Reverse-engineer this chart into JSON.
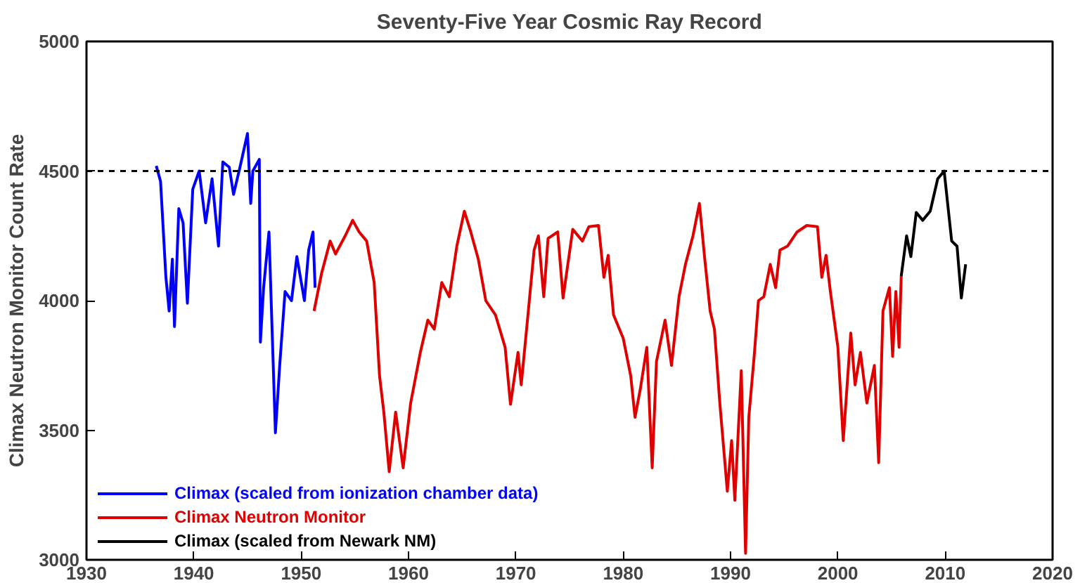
{
  "chart_data": {
    "type": "line",
    "title": "Seventy-Five Year Cosmic Ray Record",
    "ylabel": "Climax Neutron Monitor Count Rate",
    "xlim": [
      1930,
      2020
    ],
    "xticks": [
      1930,
      1940,
      1950,
      1960,
      1970,
      1980,
      1990,
      2000,
      2010,
      2020
    ],
    "ylim": [
      3000,
      5000
    ],
    "yticks": [
      3000,
      3500,
      4000,
      4500,
      5000
    ],
    "grid": false,
    "legend": "bottom left",
    "line_style": "solid",
    "ref_lines": [
      {
        "axis": "y",
        "value": 4500,
        "line_style": "dashed",
        "color": "#000000"
      }
    ],
    "series": [
      {
        "name": "Climax (scaled from ionization chamber data)",
        "color": "#0000ff",
        "x": [
          1936.5,
          1936.9,
          1937.4,
          1937.7,
          1938.0,
          1938.2,
          1938.6,
          1939.0,
          1939.4,
          1939.9,
          1940.5,
          1941.1,
          1941.7,
          1942.3,
          1942.7,
          1943.3,
          1943.7,
          1944.3,
          1945.0,
          1945.3,
          1945.5,
          1946.1,
          1946.2,
          1946.5,
          1947.0,
          1947.6,
          1948.0,
          1948.5,
          1949.1,
          1949.6,
          1950.3,
          1950.7,
          1951.1,
          1951.3
        ],
        "values": [
          4520,
          4460,
          4090,
          3960,
          4160,
          3900,
          4355,
          4300,
          3990,
          4430,
          4500,
          4300,
          4470,
          4210,
          4535,
          4515,
          4410,
          4515,
          4645,
          4375,
          4500,
          4545,
          3840,
          4050,
          4265,
          3490,
          3750,
          4035,
          4000,
          4170,
          4000,
          4195,
          4265,
          4050
        ]
      },
      {
        "name": "Climax Neutron Monitor",
        "color": "#e00000",
        "x": [
          1951.2,
          1951.9,
          1952.7,
          1953.2,
          1954.1,
          1954.8,
          1955.4,
          1956.1,
          1956.8,
          1957.3,
          1957.7,
          1958.2,
          1958.8,
          1959.5,
          1960.2,
          1961.1,
          1961.8,
          1962.4,
          1963.1,
          1963.8,
          1964.5,
          1965.2,
          1965.8,
          1966.5,
          1967.2,
          1968.1,
          1969.0,
          1969.5,
          1970.2,
          1970.5,
          1971.0,
          1971.7,
          1972.1,
          1972.6,
          1973.0,
          1973.9,
          1974.4,
          1975.3,
          1976.2,
          1976.8,
          1977.7,
          1978.2,
          1978.6,
          1979.1,
          1980.0,
          1980.7,
          1981.1,
          1981.6,
          1982.2,
          1982.7,
          1983.1,
          1983.9,
          1984.5,
          1985.2,
          1985.8,
          1986.5,
          1987.1,
          1987.6,
          1988.1,
          1988.5,
          1989.0,
          1989.7,
          1990.1,
          1990.4,
          1991.0,
          1991.4,
          1991.7,
          1992.2,
          1992.6,
          1993.1,
          1993.7,
          1994.2,
          1994.6,
          1995.3,
          1996.2,
          1997.1,
          1998.1,
          1998.5,
          1998.9,
          1999.3,
          2000.0,
          2000.5,
          2001.2,
          2001.6,
          2002.1,
          2002.7,
          2003.4,
          2003.8,
          2004.2,
          2004.8,
          2005.1,
          2005.4,
          2005.7,
          2005.9
        ],
        "values": [
          3960,
          4105,
          4230,
          4180,
          4250,
          4310,
          4265,
          4230,
          4070,
          3710,
          3570,
          3340,
          3570,
          3355,
          3605,
          3800,
          3925,
          3890,
          4070,
          4015,
          4210,
          4345,
          4265,
          4160,
          4000,
          3945,
          3820,
          3600,
          3800,
          3675,
          3890,
          4195,
          4250,
          4015,
          4240,
          4265,
          4010,
          4275,
          4230,
          4285,
          4290,
          4090,
          4175,
          3945,
          3855,
          3710,
          3550,
          3660,
          3820,
          3355,
          3765,
          3925,
          3750,
          4015,
          4140,
          4250,
          4375,
          4160,
          3960,
          3890,
          3605,
          3265,
          3460,
          3230,
          3730,
          3025,
          3550,
          3785,
          4000,
          4015,
          4140,
          4050,
          4195,
          4210,
          4265,
          4290,
          4285,
          4090,
          4175,
          4035,
          3820,
          3460,
          3875,
          3675,
          3800,
          3605,
          3750,
          3375,
          3960,
          4050,
          3785,
          4035,
          3820,
          4095
        ]
      },
      {
        "name": "Climax (scaled from Newark NM)",
        "color": "#000000",
        "x": [
          2005.9,
          2006.4,
          2006.8,
          2007.3,
          2007.9,
          2008.6,
          2009.3,
          2009.9,
          2010.6,
          2011.1,
          2011.5,
          2011.9
        ],
        "values": [
          4095,
          4250,
          4170,
          4340,
          4310,
          4345,
          4470,
          4500,
          4230,
          4210,
          4010,
          4140
        ]
      }
    ]
  }
}
